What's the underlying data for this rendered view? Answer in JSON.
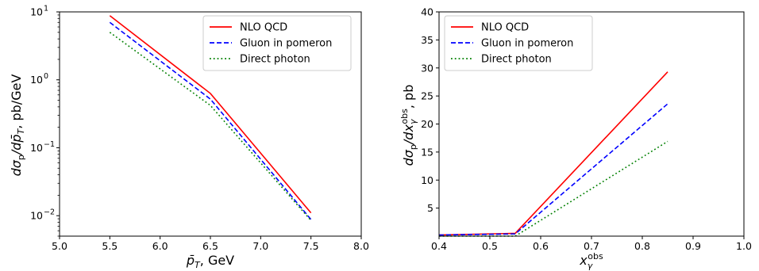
{
  "chart_data": [
    {
      "type": "line",
      "title": "",
      "xlabel_parts": [
        "p̄",
        "T",
        ", GeV"
      ],
      "ylabel_parts": [
        "dσ",
        "p",
        "/dp̄",
        "T",
        ", pb/GeV"
      ],
      "xlim": [
        5.0,
        8.0
      ],
      "ylim": [
        0.005,
        10
      ],
      "yscale": "log",
      "xticks": [
        5.0,
        5.5,
        6.0,
        6.5,
        7.0,
        7.5,
        8.0
      ],
      "xtick_labels": [
        "5.0",
        "5.5",
        "6.0",
        "6.5",
        "7.0",
        "7.5",
        "8.0"
      ],
      "yticks": [
        0.01,
        0.1,
        1,
        10
      ],
      "ytick_labels": [
        [
          "10",
          "−2"
        ],
        [
          "10",
          "−1"
        ],
        [
          "10",
          "0"
        ],
        [
          "10",
          "1"
        ]
      ],
      "grid": false,
      "legend": "top-right",
      "x": [
        5.5,
        6.5,
        7.5
      ],
      "series": [
        {
          "name": "NLO QCD",
          "color": "#ff0000",
          "style": "solid",
          "values": [
            8.8,
            0.63,
            0.011
          ]
        },
        {
          "name": "Gluon in pomeron",
          "color": "#0000ff",
          "style": "dashed",
          "values": [
            7.0,
            0.52,
            0.0088
          ]
        },
        {
          "name": "Direct photon",
          "color": "#008000",
          "style": "dotted",
          "values": [
            5.0,
            0.42,
            0.0085
          ]
        }
      ]
    },
    {
      "type": "line",
      "title": "",
      "xlabel_parts": [
        "x",
        "γ",
        "obs"
      ],
      "ylabel_parts": [
        "dσ",
        "p",
        "/dx",
        "γ",
        "obs",
        ", pb"
      ],
      "xlim": [
        0.4,
        1.0
      ],
      "ylim": [
        0,
        40
      ],
      "yscale": "linear",
      "xticks": [
        0.4,
        0.5,
        0.6,
        0.7,
        0.8,
        0.9,
        1.0
      ],
      "xtick_labels": [
        "0.4",
        "0.5",
        "0.6",
        "0.7",
        "0.8",
        "0.9",
        "1.0"
      ],
      "yticks": [
        5,
        10,
        15,
        20,
        25,
        30,
        35,
        40
      ],
      "ytick_labels": [
        "5",
        "10",
        "15",
        "20",
        "25",
        "30",
        "35",
        "40"
      ],
      "grid": false,
      "legend": "top-left",
      "series": [
        {
          "name": "NLO QCD",
          "color": "#ff0000",
          "style": "solid",
          "x": [
            0.4,
            0.55,
            0.85
          ],
          "values": [
            0.2,
            0.5,
            29.3
          ]
        },
        {
          "name": "Gluon in pomeron",
          "color": "#0000ff",
          "style": "dashed",
          "x": [
            0.4,
            0.55,
            0.85
          ],
          "values": [
            0.2,
            0.4,
            23.6
          ]
        },
        {
          "name": "Direct photon",
          "color": "#008000",
          "style": "dotted",
          "x": [
            0.4,
            0.55,
            0.85
          ],
          "values": [
            0.0,
            0.0,
            16.9
          ]
        }
      ]
    }
  ]
}
